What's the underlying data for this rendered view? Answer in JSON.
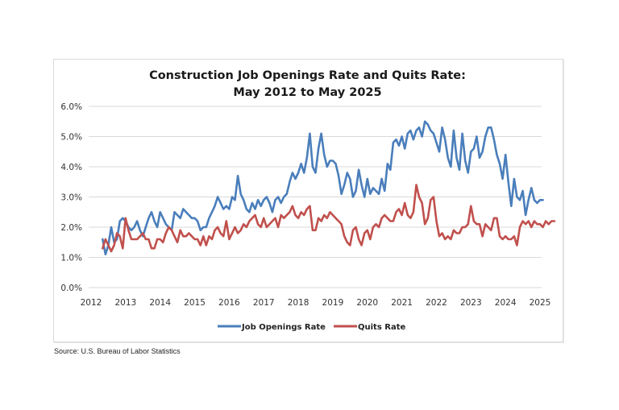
{
  "chart_data": {
    "type": "line",
    "title": "Construction Job Openings Rate and Quits Rate:",
    "subtitle": "May 2012 to May 2025",
    "xlabel": "",
    "ylabel": "",
    "ylim": [
      0,
      6
    ],
    "yticks": [
      "0.0%",
      "1.0%",
      "2.0%",
      "3.0%",
      "4.0%",
      "5.0%",
      "6.0%"
    ],
    "ytick_values": [
      0,
      1,
      2,
      3,
      4,
      5,
      6
    ],
    "xticks": [
      "2012",
      "2013",
      "2014",
      "2015",
      "2016",
      "2017",
      "2018",
      "2019",
      "2020",
      "2021",
      "2022",
      "2023",
      "2024",
      "2025"
    ],
    "xlim": [
      2012,
      2025
    ],
    "grid": true,
    "legend_position": "bottom",
    "x_start": "2012-05",
    "x_step": "monthly",
    "series": [
      {
        "name": "Job Openings Rate",
        "color": "#4a7ebb",
        "values": [
          1.6,
          1.1,
          1.4,
          2.0,
          1.5,
          1.6,
          2.2,
          2.3,
          2.2,
          2.0,
          1.9,
          2.0,
          2.2,
          1.9,
          1.7,
          2.0,
          2.3,
          2.5,
          2.2,
          2.0,
          2.5,
          2.3,
          2.1,
          2.0,
          1.9,
          2.5,
          2.4,
          2.3,
          2.6,
          2.5,
          2.4,
          2.3,
          2.3,
          2.2,
          1.9,
          2.0,
          2.0,
          2.3,
          2.5,
          2.7,
          3.0,
          2.8,
          2.6,
          2.7,
          2.6,
          3.0,
          2.9,
          3.7,
          3.1,
          2.9,
          2.6,
          2.5,
          2.8,
          2.6,
          2.9,
          2.7,
          2.9,
          3.0,
          2.8,
          2.5,
          2.9,
          3.0,
          2.8,
          3.0,
          3.1,
          3.5,
          3.8,
          3.6,
          3.8,
          4.1,
          3.8,
          4.3,
          5.1,
          4.0,
          3.8,
          4.6,
          5.1,
          4.4,
          4.0,
          4.2,
          4.2,
          4.1,
          3.7,
          3.1,
          3.4,
          3.8,
          3.6,
          3.0,
          3.2,
          3.9,
          3.4,
          3.0,
          3.6,
          3.1,
          3.3,
          3.2,
          3.1,
          3.6,
          3.2,
          4.1,
          3.9,
          4.8,
          4.9,
          4.7,
          5.0,
          4.6,
          5.1,
          5.2,
          4.9,
          5.2,
          5.3,
          5.0,
          5.5,
          5.4,
          5.2,
          5.1,
          4.8,
          4.5,
          5.3,
          4.9,
          4.3,
          4.0,
          5.2,
          4.3,
          3.9,
          5.1,
          4.2,
          3.8,
          4.5,
          4.6,
          5.0,
          4.3,
          4.5,
          5.0,
          5.3,
          5.3,
          4.9,
          4.4,
          4.1,
          3.6,
          4.4,
          3.5,
          2.7,
          3.6,
          3.0,
          2.9,
          3.2,
          2.4,
          2.9,
          3.3,
          2.9,
          2.8,
          2.9,
          2.9
        ]
      },
      {
        "name": "Quits Rate",
        "color": "#c0504d",
        "values": [
          1.3,
          1.6,
          1.4,
          1.2,
          1.4,
          1.8,
          1.7,
          1.3,
          2.3,
          1.9,
          1.6,
          1.6,
          1.6,
          1.7,
          1.8,
          1.6,
          1.6,
          1.3,
          1.3,
          1.6,
          1.6,
          1.5,
          1.8,
          2.0,
          1.9,
          1.7,
          1.5,
          1.9,
          1.7,
          1.7,
          1.8,
          1.7,
          1.6,
          1.6,
          1.4,
          1.7,
          1.4,
          1.7,
          1.6,
          1.9,
          2.0,
          1.8,
          1.7,
          2.2,
          1.6,
          1.8,
          2.0,
          1.8,
          1.9,
          2.1,
          2.0,
          2.2,
          2.3,
          2.4,
          2.1,
          2.0,
          2.3,
          2.0,
          2.1,
          2.2,
          2.3,
          2.0,
          2.4,
          2.3,
          2.4,
          2.5,
          2.7,
          2.4,
          2.3,
          2.5,
          2.4,
          2.6,
          2.7,
          1.9,
          1.9,
          2.3,
          2.2,
          2.4,
          2.3,
          2.5,
          2.4,
          2.3,
          2.2,
          2.1,
          1.7,
          1.5,
          1.4,
          1.9,
          2.0,
          1.6,
          1.4,
          1.8,
          1.9,
          1.6,
          2.0,
          2.1,
          2.0,
          2.3,
          2.4,
          2.3,
          2.2,
          2.2,
          2.5,
          2.6,
          2.4,
          2.8,
          2.4,
          2.3,
          2.5,
          3.4,
          3.0,
          2.8,
          2.1,
          2.3,
          2.9,
          3.0,
          2.2,
          1.7,
          1.8,
          1.6,
          1.7,
          1.6,
          1.9,
          1.8,
          1.8,
          2.0,
          2.0,
          2.1,
          2.7,
          2.2,
          2.1,
          2.1,
          1.7,
          2.1,
          2.0,
          1.9,
          2.3,
          2.3,
          1.7,
          1.6,
          1.7,
          1.6,
          1.6,
          1.7,
          1.4,
          2.0,
          2.2,
          2.1,
          2.2,
          2.0,
          2.2,
          2.1,
          2.1,
          2.0,
          2.2,
          2.1,
          2.2,
          2.2
        ]
      }
    ],
    "source": "Source: U.S. Bureau of Labor Statistics"
  }
}
